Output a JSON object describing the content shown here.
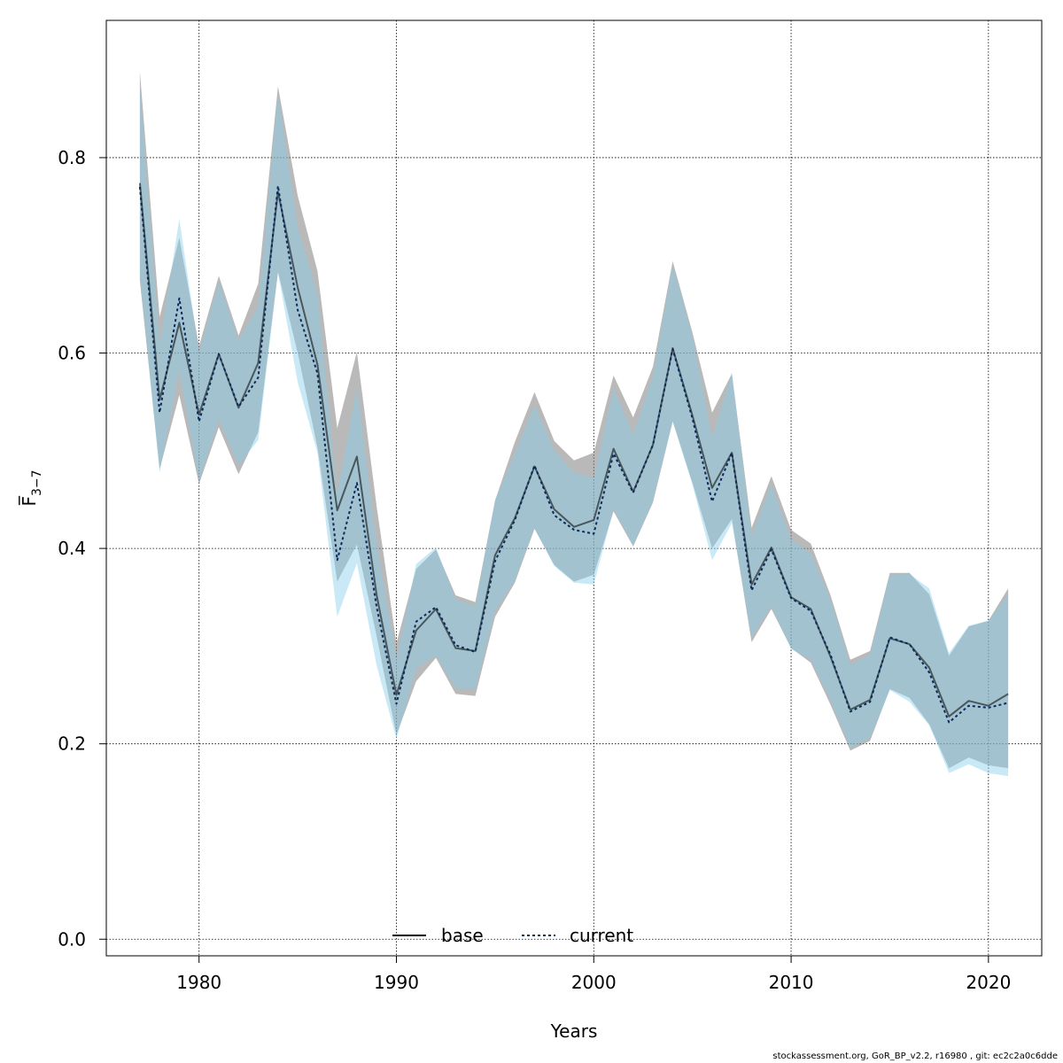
{
  "chart_data": {
    "type": "line",
    "xlabel": "Years",
    "ylabel": "F̅",
    "ylabel_sub": "3−7",
    "xlim": [
      1975.3,
      2022.7
    ],
    "ylim": [
      -0.017,
      0.9405
    ],
    "xticks": [
      1980,
      1990,
      2000,
      2010,
      2020
    ],
    "yticks": [
      0.0,
      0.2,
      0.4,
      0.6,
      0.8
    ],
    "ytick_labels": [
      "0.0",
      "0.2",
      "0.4",
      "0.6",
      "0.8"
    ],
    "grid": true,
    "legend_position": "bottom",
    "x": [
      1977,
      1978,
      1979,
      1980,
      1981,
      1982,
      1983,
      1984,
      1985,
      1986,
      1987,
      1988,
      1989,
      1990,
      1991,
      1992,
      1993,
      1994,
      1995,
      1996,
      1997,
      1998,
      1999,
      2000,
      2001,
      2002,
      2003,
      2004,
      2005,
      2006,
      2007,
      2008,
      2009,
      2010,
      2011,
      2012,
      2013,
      2014,
      2015,
      2016,
      2017,
      2018,
      2019,
      2020,
      2021
    ],
    "series": [
      {
        "name": "base",
        "color": "#000000",
        "band_color": "#808080",
        "values": [
          0.774,
          0.552,
          0.631,
          0.537,
          0.599,
          0.544,
          0.59,
          0.765,
          0.667,
          0.588,
          0.439,
          0.494,
          0.352,
          0.25,
          0.316,
          0.338,
          0.298,
          0.295,
          0.393,
          0.431,
          0.484,
          0.44,
          0.422,
          0.429,
          0.502,
          0.458,
          0.506,
          0.605,
          0.536,
          0.462,
          0.498,
          0.363,
          0.401,
          0.35,
          0.338,
          0.289,
          0.235,
          0.245,
          0.308,
          0.302,
          0.278,
          0.228,
          0.244,
          0.239,
          0.251
        ],
        "lower": [
          0.674,
          0.481,
          0.557,
          0.466,
          0.524,
          0.476,
          0.519,
          0.683,
          0.6,
          0.503,
          0.366,
          0.404,
          0.31,
          0.209,
          0.264,
          0.288,
          0.251,
          0.249,
          0.33,
          0.365,
          0.42,
          0.383,
          0.366,
          0.373,
          0.438,
          0.402,
          0.447,
          0.53,
          0.467,
          0.4,
          0.43,
          0.304,
          0.338,
          0.298,
          0.283,
          0.24,
          0.193,
          0.203,
          0.256,
          0.247,
          0.22,
          0.175,
          0.186,
          0.178,
          0.175
        ],
        "upper": [
          0.888,
          0.637,
          0.718,
          0.607,
          0.679,
          0.618,
          0.671,
          0.873,
          0.761,
          0.684,
          0.523,
          0.601,
          0.443,
          0.303,
          0.379,
          0.399,
          0.352,
          0.345,
          0.449,
          0.509,
          0.56,
          0.51,
          0.49,
          0.498,
          0.577,
          0.534,
          0.586,
          0.694,
          0.621,
          0.539,
          0.579,
          0.421,
          0.474,
          0.419,
          0.405,
          0.352,
          0.286,
          0.295,
          0.375,
          0.375,
          0.353,
          0.29,
          0.32,
          0.326,
          0.359
        ]
      },
      {
        "name": "current",
        "color": "#0a2a5a",
        "band_color": "#87CEEB",
        "values": [
          0.77,
          0.539,
          0.656,
          0.53,
          0.599,
          0.545,
          0.575,
          0.771,
          0.644,
          0.579,
          0.388,
          0.467,
          0.34,
          0.241,
          0.325,
          0.34,
          0.301,
          0.294,
          0.387,
          0.429,
          0.485,
          0.434,
          0.419,
          0.415,
          0.497,
          0.457,
          0.506,
          0.604,
          0.533,
          0.448,
          0.498,
          0.357,
          0.399,
          0.349,
          0.336,
          0.291,
          0.233,
          0.243,
          0.309,
          0.302,
          0.273,
          0.222,
          0.239,
          0.237,
          0.242
        ],
        "lower": [
          0.68,
          0.478,
          0.581,
          0.469,
          0.532,
          0.485,
          0.511,
          0.682,
          0.57,
          0.498,
          0.33,
          0.385,
          0.28,
          0.205,
          0.277,
          0.29,
          0.257,
          0.256,
          0.336,
          0.367,
          0.421,
          0.382,
          0.365,
          0.363,
          0.44,
          0.403,
          0.448,
          0.53,
          0.465,
          0.388,
          0.426,
          0.309,
          0.341,
          0.297,
          0.286,
          0.244,
          0.196,
          0.206,
          0.255,
          0.243,
          0.219,
          0.17,
          0.179,
          0.17,
          0.167
        ],
        "upper": [
          0.872,
          0.609,
          0.737,
          0.601,
          0.673,
          0.613,
          0.648,
          0.865,
          0.729,
          0.66,
          0.456,
          0.565,
          0.405,
          0.287,
          0.384,
          0.401,
          0.348,
          0.341,
          0.45,
          0.497,
          0.547,
          0.5,
          0.478,
          0.472,
          0.564,
          0.517,
          0.577,
          0.69,
          0.617,
          0.513,
          0.58,
          0.413,
          0.466,
          0.409,
          0.395,
          0.348,
          0.281,
          0.291,
          0.373,
          0.374,
          0.359,
          0.293,
          0.321,
          0.326,
          0.353
        ]
      }
    ]
  },
  "footer": "stockassessment.org, GoR_BP_v2.2, r16980 , git: ec2c2a0c6dde"
}
